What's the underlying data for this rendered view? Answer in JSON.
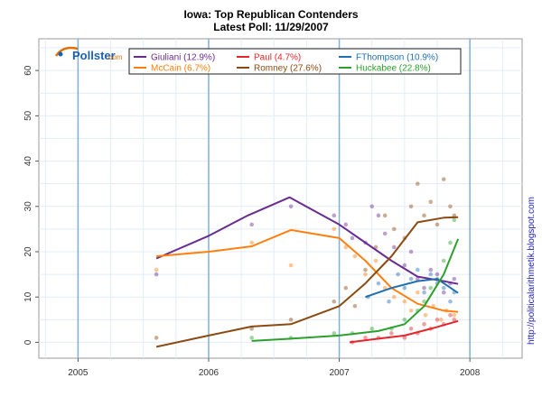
{
  "colors": {
    "Giuliani": "#6a2c91",
    "McCain": "#ff7f0e",
    "Paul": "#e3262a",
    "Romney": "#8b4a12",
    "FThompson": "#1f6fb4",
    "Huckabee": "#2ca02c"
  },
  "logo": {
    "name": "Pollster",
    "suffix": ".com"
  },
  "side_text": "http://politicalarithmetik.blogspot.com",
  "chart_data": {
    "type": "line",
    "title": "Iowa: Top Republican Contenders",
    "subtitle": "Latest Poll: 11/29/2007",
    "xlim": [
      2004.7,
      2008.4
    ],
    "ylim": [
      -3.5,
      67
    ],
    "x_ticks": [
      2005,
      2006,
      2007,
      2008
    ],
    "x_tick_labels": [
      "2005",
      "2006",
      "2007",
      "2008"
    ],
    "y_ticks": [
      0,
      10,
      20,
      30,
      40,
      50,
      60
    ],
    "y_tick_labels": [
      "0",
      "10",
      "20",
      "30",
      "40",
      "50",
      "60"
    ],
    "grid": true,
    "legend_position": "top-center",
    "series": [
      {
        "name": "Giuliani",
        "legend": "Giuliani (12.9%)",
        "trend": [
          [
            2005.6,
            18.5
          ],
          [
            2006.0,
            23.5
          ],
          [
            2006.3,
            28
          ],
          [
            2006.62,
            32
          ],
          [
            2007.0,
            26
          ],
          [
            2007.2,
            22
          ],
          [
            2007.4,
            18
          ],
          [
            2007.6,
            14.5
          ],
          [
            2007.8,
            13.5
          ],
          [
            2007.91,
            12.9
          ]
        ],
        "points": [
          [
            2005.6,
            15
          ],
          [
            2006.33,
            26
          ],
          [
            2006.63,
            30
          ],
          [
            2006.96,
            28
          ],
          [
            2007.05,
            26
          ],
          [
            2007.1,
            23
          ],
          [
            2007.2,
            22
          ],
          [
            2007.25,
            30
          ],
          [
            2007.3,
            28
          ],
          [
            2007.35,
            24
          ],
          [
            2007.42,
            21
          ],
          [
            2007.5,
            17
          ],
          [
            2007.55,
            20
          ],
          [
            2007.6,
            14
          ],
          [
            2007.65,
            12
          ],
          [
            2007.7,
            16
          ],
          [
            2007.75,
            15
          ],
          [
            2007.8,
            11
          ],
          [
            2007.85,
            13
          ],
          [
            2007.88,
            14
          ]
        ]
      },
      {
        "name": "McCain",
        "legend": "McCain (6.7%)",
        "trend": [
          [
            2005.6,
            19
          ],
          [
            2006.0,
            20
          ],
          [
            2006.33,
            21.2
          ],
          [
            2006.63,
            24.8
          ],
          [
            2007.0,
            23
          ],
          [
            2007.2,
            18
          ],
          [
            2007.4,
            12
          ],
          [
            2007.6,
            8.5
          ],
          [
            2007.8,
            7
          ],
          [
            2007.91,
            6.7
          ]
        ],
        "points": [
          [
            2005.6,
            16
          ],
          [
            2006.33,
            22
          ],
          [
            2006.63,
            17
          ],
          [
            2006.96,
            25
          ],
          [
            2007.05,
            21
          ],
          [
            2007.12,
            19
          ],
          [
            2007.2,
            15
          ],
          [
            2007.28,
            18
          ],
          [
            2007.35,
            12
          ],
          [
            2007.42,
            10
          ],
          [
            2007.5,
            9
          ],
          [
            2007.55,
            7
          ],
          [
            2007.6,
            11
          ],
          [
            2007.66,
            6
          ],
          [
            2007.72,
            8
          ],
          [
            2007.78,
            5
          ],
          [
            2007.82,
            7
          ],
          [
            2007.88,
            6
          ]
        ]
      },
      {
        "name": "Paul",
        "legend": "Paul (4.7%)",
        "trend": [
          [
            2007.08,
            0
          ],
          [
            2007.3,
            0.8
          ],
          [
            2007.5,
            1.5
          ],
          [
            2007.7,
            3
          ],
          [
            2007.91,
            4.7
          ]
        ],
        "points": [
          [
            2007.1,
            0
          ],
          [
            2007.2,
            1
          ],
          [
            2007.3,
            1
          ],
          [
            2007.4,
            2
          ],
          [
            2007.5,
            1
          ],
          [
            2007.55,
            3
          ],
          [
            2007.6,
            2
          ],
          [
            2007.65,
            4
          ],
          [
            2007.7,
            3
          ],
          [
            2007.75,
            5
          ],
          [
            2007.8,
            4
          ],
          [
            2007.85,
            6
          ],
          [
            2007.88,
            5
          ]
        ]
      },
      {
        "name": "Romney",
        "legend": "Romney (27.6%)",
        "trend": [
          [
            2005.6,
            -1
          ],
          [
            2006.0,
            1.5
          ],
          [
            2006.33,
            3.5
          ],
          [
            2006.63,
            4
          ],
          [
            2007.0,
            8
          ],
          [
            2007.2,
            13
          ],
          [
            2007.4,
            19
          ],
          [
            2007.6,
            26.5
          ],
          [
            2007.8,
            27.5
          ],
          [
            2007.91,
            27.6
          ]
        ],
        "points": [
          [
            2005.6,
            1
          ],
          [
            2006.33,
            3
          ],
          [
            2006.63,
            5
          ],
          [
            2006.96,
            9
          ],
          [
            2007.05,
            12
          ],
          [
            2007.12,
            8
          ],
          [
            2007.2,
            16
          ],
          [
            2007.28,
            21
          ],
          [
            2007.35,
            28
          ],
          [
            2007.42,
            25
          ],
          [
            2007.5,
            23
          ],
          [
            2007.55,
            30
          ],
          [
            2007.6,
            35
          ],
          [
            2007.65,
            28
          ],
          [
            2007.7,
            31
          ],
          [
            2007.75,
            26
          ],
          [
            2007.8,
            36
          ],
          [
            2007.85,
            30
          ],
          [
            2007.88,
            28
          ]
        ]
      },
      {
        "name": "FThompson",
        "legend": "FThompson (10.9%)",
        "trend": [
          [
            2007.2,
            10
          ],
          [
            2007.4,
            12
          ],
          [
            2007.6,
            13.5
          ],
          [
            2007.75,
            14
          ],
          [
            2007.91,
            10.9
          ]
        ],
        "points": [
          [
            2007.22,
            10
          ],
          [
            2007.3,
            13
          ],
          [
            2007.38,
            9
          ],
          [
            2007.45,
            15
          ],
          [
            2007.5,
            12
          ],
          [
            2007.55,
            14
          ],
          [
            2007.6,
            16
          ],
          [
            2007.65,
            11
          ],
          [
            2007.7,
            15
          ],
          [
            2007.75,
            13
          ],
          [
            2007.8,
            12
          ],
          [
            2007.85,
            9
          ],
          [
            2007.88,
            11
          ]
        ]
      },
      {
        "name": "Huckabee",
        "legend": "Huckabee (22.8%)",
        "trend": [
          [
            2006.33,
            0.3
          ],
          [
            2006.63,
            0.8
          ],
          [
            2007.0,
            1.5
          ],
          [
            2007.3,
            2.5
          ],
          [
            2007.5,
            4
          ],
          [
            2007.65,
            8
          ],
          [
            2007.8,
            15
          ],
          [
            2007.91,
            22.8
          ]
        ],
        "points": [
          [
            2006.33,
            1
          ],
          [
            2006.63,
            1
          ],
          [
            2006.96,
            2
          ],
          [
            2007.1,
            2
          ],
          [
            2007.25,
            3
          ],
          [
            2007.4,
            3
          ],
          [
            2007.5,
            5
          ],
          [
            2007.6,
            7
          ],
          [
            2007.65,
            9
          ],
          [
            2007.7,
            12
          ],
          [
            2007.75,
            14
          ],
          [
            2007.8,
            18
          ],
          [
            2007.85,
            22
          ],
          [
            2007.88,
            27
          ]
        ]
      }
    ]
  }
}
